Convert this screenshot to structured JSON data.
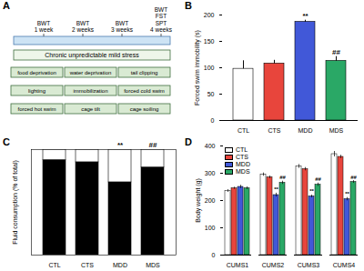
{
  "diagram": {
    "panel_label": "A",
    "timeline": [
      {
        "tests": [
          "BWT"
        ],
        "time": "1 week"
      },
      {
        "tests": [
          "BWT"
        ],
        "time": "2 weeks"
      },
      {
        "tests": [
          "BWT"
        ],
        "time": "3 weeks"
      },
      {
        "tests": [
          "BWT",
          "FST",
          "SPT"
        ],
        "time": "4 weeks"
      }
    ],
    "protocol": "Chronic unpredictable mild stress",
    "stressors": [
      "food deprivation",
      "water deprivation",
      "tail clipping",
      "lighting",
      "immobilization",
      "forced cold swim",
      "forced hot swim",
      "cage tilt",
      "cage soiling"
    ]
  },
  "chart_data": [
    {
      "type": "bar",
      "panel_label": "B",
      "y_label": "Forced swim immobility (s)",
      "categories": [
        "CTL",
        "CTS",
        "MDD",
        "MDS"
      ],
      "values": [
        98,
        108,
        187,
        113
      ],
      "error": [
        15,
        6,
        3,
        8
      ],
      "colors": [
        "#ffffff",
        "#e8453c",
        "#4158d8",
        "#2aa866"
      ],
      "ylim": [
        0,
        200
      ],
      "yticks": [
        0,
        50,
        100,
        150,
        200
      ],
      "annotations": [
        {
          "category": "MDD",
          "text": "**"
        },
        {
          "category": "MDS",
          "text": "##"
        }
      ]
    },
    {
      "type": "bar",
      "panel_label": "C",
      "y_label": "Fluid consumption (% of total)",
      "stacked": true,
      "tick_labels": "x",
      "categories": [
        "CTL",
        "CTS",
        "MDD",
        "MDS"
      ],
      "series": [
        {
          "color": "#000000",
          "values": [
            90,
            88,
            69,
            83
          ]
        },
        {
          "color": "#ffffff",
          "values": [
            10,
            12,
            31,
            17
          ]
        }
      ],
      "ylim": [
        0,
        100
      ],
      "annotations": [
        {
          "category": "MDD",
          "text": "**"
        },
        {
          "category": "MDS",
          "text": "##"
        }
      ]
    },
    {
      "type": "bar",
      "panel_label": "D",
      "y_label": "Body weight (g)",
      "legend": "top-left",
      "categories": [
        "CUMS1",
        "CUMS2",
        "CUMS3",
        "CUMS4"
      ],
      "series": [
        {
          "name": "CTL",
          "color": "#ffffff",
          "values": [
            235,
            295,
            325,
            370
          ],
          "error": [
            5,
            6,
            7,
            10
          ]
        },
        {
          "name": "CTS",
          "color": "#e8453c",
          "values": [
            245,
            285,
            315,
            360
          ],
          "error": [
            4,
            5,
            6,
            6
          ]
        },
        {
          "name": "MDD",
          "color": "#4158d8",
          "values": [
            250,
            220,
            215,
            205
          ],
          "error": [
            6,
            7,
            5,
            6
          ]
        },
        {
          "name": "MDS",
          "color": "#2aa866",
          "values": [
            245,
            265,
            258,
            268
          ],
          "error": [
            5,
            6,
            6,
            5
          ]
        }
      ],
      "ylim": [
        0,
        400
      ],
      "yticks": [
        0,
        100,
        200,
        300,
        400
      ],
      "annotations": [
        {
          "category": "CUMS2",
          "series": "MDD",
          "text": "**"
        },
        {
          "category": "CUMS3",
          "series": "MDD",
          "text": "**"
        },
        {
          "category": "CUMS4",
          "series": "MDD",
          "text": "**"
        },
        {
          "category": "CUMS2",
          "series": "MDS",
          "text": "##"
        },
        {
          "category": "CUMS3",
          "series": "MDS",
          "text": "##"
        },
        {
          "category": "CUMS4",
          "series": "MDS",
          "text": "##"
        }
      ]
    }
  ]
}
